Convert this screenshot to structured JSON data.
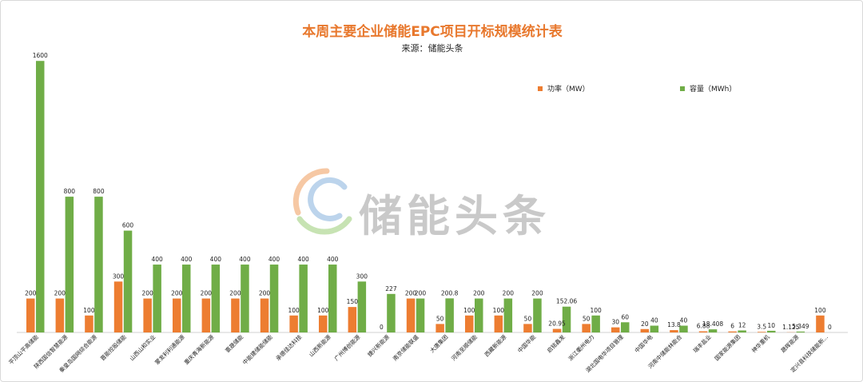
{
  "colors": {
    "title": "#e8782d",
    "power": "#ed7d31",
    "capacity": "#70ad47",
    "watermark": "#c9c9c9",
    "watermark_logo_orange": "#f6c8a4",
    "watermark_logo_green": "#c7e3b3",
    "watermark_logo_blue": "#bcd4ec",
    "label_text": "#222222",
    "axis": "#d0d0d0"
  },
  "watermark": {
    "text": "储能头条",
    "logo_icon": "energy-swirl-logo-icon"
  },
  "chart_data": {
    "type": "bar",
    "title": "本周主要企业储能EPC项目开标规模统计表",
    "subtitle": "来源：储能头条",
    "legend_position": "top-right",
    "grid": false,
    "ylim": [
      0,
      1700
    ],
    "categories": [
      "平顶山平高储能",
      "陕西国信智慧能源",
      "秦皇岛国网综合能源",
      "晋能控股储能",
      "山西山和实业",
      "蒙发利利通能源",
      "重庆青海新能源",
      "寰晟储能",
      "中能建储能储能",
      "承德佳达科技",
      "山西新能源",
      "广州博创能源",
      "捷兴新能源",
      "南京储能联盛",
      "大唐集团",
      "河南至顺储能",
      "西藏新能源",
      "中国华能",
      "启铭鑫发",
      "浙江衢州电力",
      "湖北国电华项目管理",
      "中国华电",
      "河南中储能林能合",
      "瑞丰盐业",
      "国家能源集团",
      "神华重机",
      "晟晖能源",
      "定兴县科技储能新..."
    ],
    "series": [
      {
        "name": "功率（MW）",
        "values": [
          200,
          200,
          100,
          300,
          200,
          200,
          200,
          200,
          200,
          100,
          100,
          150,
          0,
          200,
          50,
          100,
          100,
          50,
          20.95,
          50,
          30,
          20,
          13.8,
          6.88,
          6,
          3.5,
          1.125,
          100
        ]
      },
      {
        "name": "容量（MWh）",
        "values": [
          1600,
          800,
          800,
          600,
          400,
          400,
          400,
          400,
          400,
          400,
          400,
          300,
          227,
          200,
          200.8,
          200,
          200,
          200,
          152.06,
          100,
          60,
          40,
          40,
          18.408,
          12,
          10,
          5.349,
          0
        ]
      }
    ],
    "power_labels": [
      "200",
      "200",
      "100",
      "300",
      "200",
      "200",
      "200",
      "200",
      "200",
      "100",
      "100",
      "150",
      "0",
      "200",
      "50",
      "100",
      "100",
      "50",
      "20.95",
      "50",
      "30",
      "20",
      "13.8",
      "6.88",
      "6",
      "3.5",
      "1.125",
      "100"
    ],
    "capacity_labels": [
      "1600",
      "800",
      "800",
      "600",
      "400",
      "400",
      "400",
      "400",
      "400",
      "400",
      "400",
      "300",
      "227",
      "200",
      "200.8",
      "200",
      "200",
      "200",
      "152.06",
      "100",
      "60",
      "40",
      "40",
      "18.408",
      "12",
      "10",
      "5.349",
      "0"
    ]
  }
}
